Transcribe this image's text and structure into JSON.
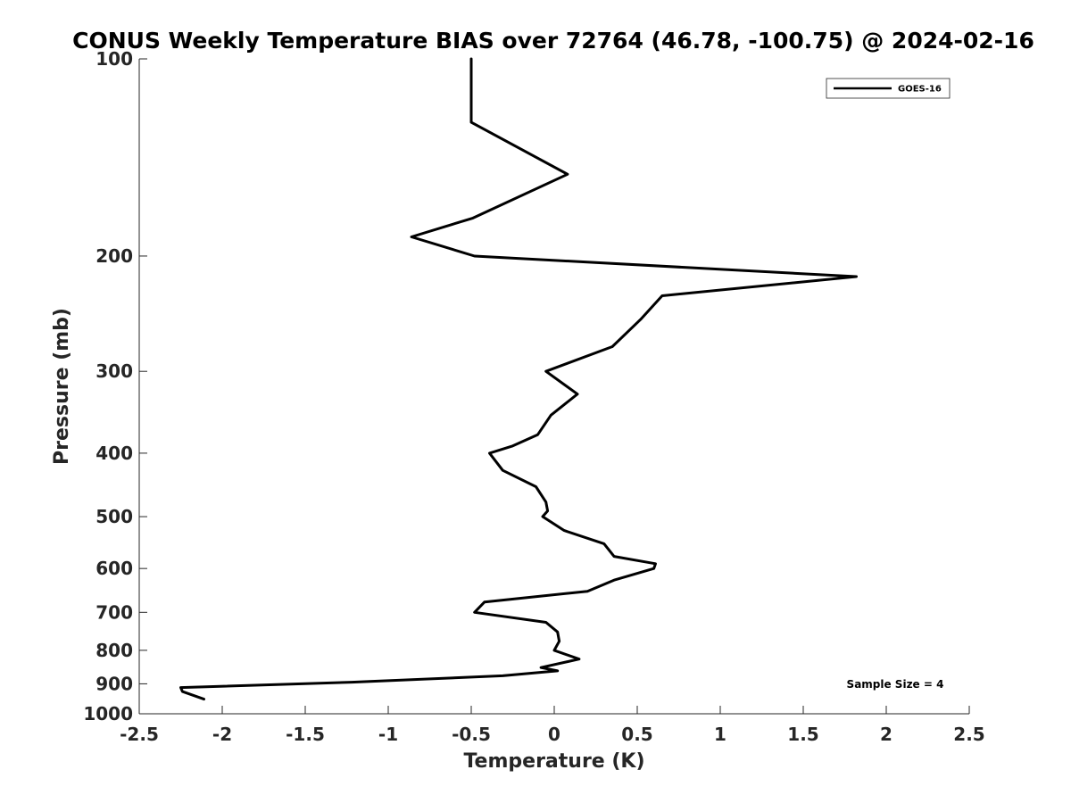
{
  "chart_data": {
    "type": "line",
    "title": "CONUS Weekly Temperature BIAS over 72764 (46.78, -100.75) @ 2024-02-16",
    "xlabel": "Temperature (K)",
    "ylabel": "Pressure (mb)",
    "xlim": [
      -2.5,
      2.5
    ],
    "ylim": [
      100,
      1000
    ],
    "yscale": "log",
    "yaxis_reversed": true,
    "x_ticks": [
      -2.5,
      -2,
      -1.5,
      -1,
      -0.5,
      0,
      0.5,
      1,
      1.5,
      2,
      2.5
    ],
    "x_tick_labels": [
      "-2.5",
      "-2",
      "-1.5",
      "-1",
      "-0.5",
      "0",
      "0.5",
      "1",
      "1.5",
      "2",
      "2.5"
    ],
    "y_ticks": [
      100,
      200,
      300,
      400,
      500,
      600,
      700,
      800,
      900,
      1000
    ],
    "y_tick_labels": [
      "100",
      "200",
      "300",
      "400",
      "500",
      "600",
      "700",
      "800",
      "900",
      "1000"
    ],
    "grid": false,
    "legend_position": "top-right",
    "series": [
      {
        "name": "GOES-16",
        "color": "#000000",
        "points": [
          [
            -0.5,
            100
          ],
          [
            -0.5,
            125
          ],
          [
            0.08,
            150
          ],
          [
            -0.49,
            175
          ],
          [
            -0.86,
            187
          ],
          [
            -0.48,
            200
          ],
          [
            1.82,
            215
          ],
          [
            0.65,
            230
          ],
          [
            0.52,
            250
          ],
          [
            0.35,
            275
          ],
          [
            -0.05,
            300
          ],
          [
            0.14,
            325
          ],
          [
            -0.02,
            350
          ],
          [
            -0.1,
            375
          ],
          [
            -0.25,
            390
          ],
          [
            -0.39,
            400
          ],
          [
            -0.31,
            425
          ],
          [
            -0.11,
            450
          ],
          [
            -0.05,
            475
          ],
          [
            -0.04,
            490
          ],
          [
            -0.07,
            500
          ],
          [
            0.06,
            525
          ],
          [
            0.3,
            550
          ],
          [
            0.36,
            575
          ],
          [
            0.61,
            590
          ],
          [
            0.6,
            600
          ],
          [
            0.36,
            625
          ],
          [
            0.2,
            650
          ],
          [
            -0.42,
            675
          ],
          [
            -0.48,
            700
          ],
          [
            -0.05,
            725
          ],
          [
            0.02,
            750
          ],
          [
            0.03,
            775
          ],
          [
            0.0,
            800
          ],
          [
            0.15,
            825
          ],
          [
            -0.08,
            850
          ],
          [
            0.02,
            860
          ],
          [
            -0.31,
            875
          ],
          [
            -1.22,
            895
          ],
          [
            -2.25,
            912
          ],
          [
            -2.24,
            925
          ],
          [
            -2.11,
            950
          ]
        ]
      }
    ],
    "annotations": [
      {
        "text": "Sample Size = 4",
        "position": "bottom-right"
      }
    ]
  }
}
